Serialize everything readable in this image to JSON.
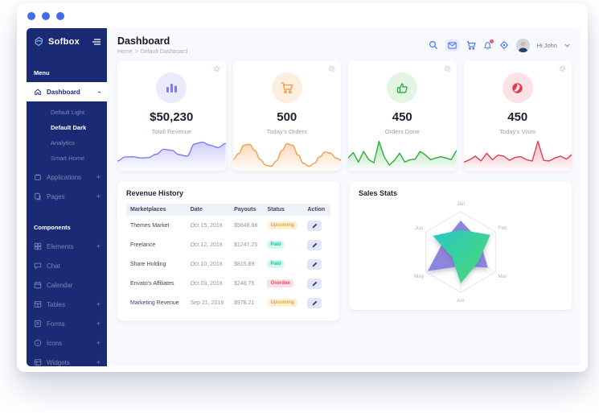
{
  "colors": {
    "accent_blue": "#3e6fe4",
    "sidebar_bg": "#1b2a75",
    "status_upcoming": "#f5a623",
    "status_paid": "#10c79c",
    "status_overdue": "#ee4b63"
  },
  "sidebar": {
    "logo_text": "Sofbox",
    "section_menu": "Menu",
    "dashboard_label": "Dashboard",
    "dashboard_collapse": "-",
    "dashboard_children": [
      "Default Light",
      "Default Dark",
      "Analytics",
      "Smart Home"
    ],
    "menu_items": [
      {
        "label": "Applications",
        "suffix": "+"
      },
      {
        "label": "Pages",
        "suffix": "+"
      }
    ],
    "section_components": "Components",
    "component_items": [
      {
        "label": "Elements",
        "suffix": "+"
      },
      {
        "label": "Chat",
        "suffix": ""
      },
      {
        "label": "Calendar",
        "suffix": ""
      },
      {
        "label": "Tables",
        "suffix": "+"
      },
      {
        "label": "Forms",
        "suffix": "+"
      },
      {
        "label": "Icons",
        "suffix": "+"
      },
      {
        "label": "Widgets",
        "suffix": "+"
      }
    ]
  },
  "header": {
    "title": "Dashboard",
    "breadcrumb_home": "Home",
    "breadcrumb_separator": ">",
    "breadcrumb_current": "Default Dashboard",
    "user_greeting": "Hi John"
  },
  "stat_cards": [
    {
      "value": "$50,230",
      "label": "Totall Revenue"
    },
    {
      "value": "500",
      "label": "Today's Orders"
    },
    {
      "value": "450",
      "label": "Orders Done"
    },
    {
      "value": "450",
      "label": "Today's Visits"
    }
  ],
  "revenue_history": {
    "title": "Revenue History",
    "columns": [
      "Marketplaces",
      "Date",
      "Payouts",
      "Status",
      "Action"
    ],
    "rows": [
      {
        "marketplace": "Themes Market",
        "date": "Oct 15, 2018",
        "payout": "$5848.68",
        "status": "Upcoming"
      },
      {
        "marketplace": "Freelance",
        "date": "Oct 12, 2018",
        "payout": "$1247.25",
        "status": "Paid"
      },
      {
        "marketplace": "Share Holding",
        "date": "Oct 10, 2018",
        "payout": "$815.89",
        "status": "Paid"
      },
      {
        "marketplace": "Envato's Affiliates",
        "date": "Oct 03, 2018",
        "payout": "$248.75",
        "status": "Overdue"
      },
      {
        "marketplace": "Marketing Revenue",
        "date": "Sep 21, 2018",
        "payout": "$978.21",
        "status": "Upcoming"
      }
    ]
  },
  "sales_stats": {
    "title": "Sales Stats"
  },
  "chart_data": [
    {
      "type": "area",
      "name": "total-revenue-sparkline",
      "color": "#7d7bf2",
      "smooth": true,
      "ylim": [
        0,
        10
      ],
      "values": [
        3,
        4.3,
        4.4,
        4,
        4.1,
        5.2,
        6.9,
        6.6,
        5.1,
        4.6,
        8.7,
        9.3,
        8.3,
        7.5,
        8.8
      ]
    },
    {
      "type": "area",
      "name": "todays-orders-sparkline",
      "color": "#f69b4a",
      "smooth": true,
      "ylim": [
        0,
        10
      ],
      "values": [
        3.5,
        5.5,
        8.3,
        8.6,
        6.5,
        3.5,
        1.6,
        1.2,
        3,
        6.5,
        8.8,
        8.2,
        5,
        2.2,
        1.2,
        2.2,
        4.4,
        6,
        5.6,
        4,
        3.2
      ]
    },
    {
      "type": "area",
      "name": "orders-done-sparkline",
      "color": "#2eab36",
      "smooth": false,
      "ylim": [
        0,
        10
      ],
      "values": [
        4,
        5.8,
        2.6,
        6.2,
        3.4,
        2.4,
        9.6,
        4.4,
        1.6,
        3.2,
        5.6,
        2.6,
        3.4,
        3.6,
        6.2,
        5,
        3.4,
        4,
        4.4,
        4,
        3.4,
        6.4
      ]
    },
    {
      "type": "area",
      "name": "todays-visits-sparkline",
      "color": "#e23a4e",
      "smooth": false,
      "ylim": [
        0,
        10
      ],
      "values": [
        2.6,
        3.4,
        4.6,
        3,
        5.6,
        3.4,
        5,
        4.6,
        3.2,
        4.2,
        4.4,
        3.4,
        3,
        9.6,
        3.2,
        3,
        4,
        4.6,
        3.6,
        5.2
      ]
    },
    {
      "type": "radar",
      "name": "sales-stats-radar",
      "title": "Sales Stats",
      "categories": [
        "Jan",
        "Feb",
        "Mar",
        "Apr",
        "May",
        "Jun"
      ],
      "max": 100,
      "grid": "hexagon",
      "legend": "none",
      "series": [
        {
          "name": "series-purple",
          "color": "#8d86dd",
          "values": [
            78,
            55,
            78,
            35,
            95,
            50
          ]
        },
        {
          "name": "series-teal",
          "color": "#27c8c4",
          "color2": "#4fd96f",
          "values": [
            55,
            85,
            50,
            78,
            25,
            80
          ]
        }
      ]
    }
  ]
}
